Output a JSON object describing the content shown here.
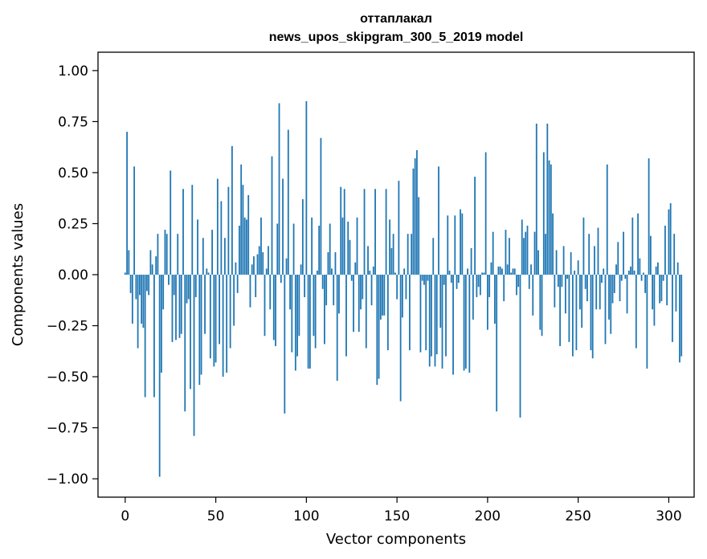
{
  "chart_data": {
    "type": "bar",
    "title_line1": "оттаплакал",
    "title_line2": "news_upos_skipgram_300_5_2019 model",
    "xlabel": "Vector components",
    "ylabel": "Components values",
    "xlim": [
      -15,
      314
    ],
    "ylim": [
      -1.09,
      1.09
    ],
    "xticks": [
      0,
      50,
      100,
      150,
      200,
      250,
      300
    ],
    "yticks": [
      1.0,
      0.75,
      0.5,
      0.25,
      0.0,
      -0.25,
      -0.5,
      -0.75,
      -1.0
    ],
    "ytick_labels": [
      "1.00",
      "0.75",
      "0.50",
      "0.25",
      "0.00",
      "−0.25",
      "−0.50",
      "−0.75",
      "−1.00"
    ],
    "bar_color": "#1f77b4",
    "values": [
      0.01,
      0.7,
      0.12,
      -0.09,
      -0.24,
      0.53,
      -0.12,
      -0.36,
      -0.1,
      -0.24,
      -0.26,
      -0.6,
      -0.08,
      -0.1,
      0.12,
      0.05,
      -0.6,
      0.09,
      0.2,
      -0.99,
      -0.48,
      -0.17,
      0.22,
      0.2,
      -0.05,
      0.51,
      -0.33,
      -0.1,
      -0.32,
      0.2,
      -0.31,
      -0.29,
      0.42,
      -0.67,
      -0.14,
      -0.12,
      -0.56,
      0.44,
      -0.79,
      -0.11,
      0.27,
      -0.54,
      -0.49,
      0.18,
      -0.29,
      0.03,
      0.01,
      -0.41,
      0.22,
      -0.45,
      -0.43,
      0.47,
      -0.34,
      0.36,
      -0.5,
      0.18,
      -0.48,
      0.43,
      -0.36,
      0.63,
      -0.25,
      0.06,
      -0.09,
      0.24,
      0.54,
      0.44,
      0.28,
      0.27,
      0.39,
      -0.16,
      0.05,
      0.09,
      -0.11,
      0.1,
      0.14,
      0.28,
      0.11,
      -0.3,
      0.03,
      0.14,
      -0.17,
      0.58,
      -0.32,
      -0.35,
      0.25,
      0.84,
      -0.04,
      0.47,
      -0.68,
      0.08,
      0.71,
      -0.17,
      -0.38,
      0.25,
      -0.47,
      -0.4,
      -0.3,
      0.05,
      0.37,
      -0.11,
      0.85,
      -0.46,
      -0.46,
      0.28,
      -0.3,
      -0.36,
      0.02,
      0.24,
      0.67,
      -0.07,
      -0.34,
      -0.15,
      0.11,
      0.25,
      0.03,
      -0.15,
      0.11,
      -0.52,
      -0.19,
      0.43,
      0.28,
      0.42,
      -0.4,
      0.26,
      0.17,
      -0.03,
      -0.28,
      0.06,
      0.28,
      -0.28,
      -0.17,
      -0.12,
      0.42,
      -0.36,
      0.14,
      0.02,
      -0.15,
      0.04,
      0.42,
      -0.54,
      -0.51,
      -0.22,
      -0.2,
      -0.2,
      0.42,
      -0.37,
      0.27,
      0.13,
      0.2,
      0.01,
      -0.12,
      0.46,
      -0.62,
      -0.21,
      0.03,
      -0.12,
      0.2,
      -0.37,
      0.2,
      0.52,
      0.57,
      0.61,
      0.38,
      -0.38,
      -0.03,
      -0.05,
      -0.37,
      -0.03,
      -0.45,
      -0.4,
      0.18,
      -0.45,
      -0.39,
      0.53,
      -0.26,
      -0.46,
      -0.05,
      -0.4,
      0.29,
      0.02,
      -0.04,
      -0.49,
      0.29,
      -0.07,
      -0.04,
      0.32,
      0.3,
      -0.47,
      -0.46,
      0.03,
      -0.48,
      0.13,
      -0.22,
      0.48,
      -0.11,
      -0.06,
      -0.1,
      0.01,
      0.01,
      0.6,
      -0.27,
      -0.11,
      0.06,
      0.21,
      -0.24,
      -0.67,
      0.04,
      0.04,
      0.03,
      -0.13,
      0.22,
      0.05,
      0.18,
      0.01,
      0.03,
      0.03,
      -0.1,
      -0.06,
      -0.7,
      0.27,
      0.18,
      0.21,
      0.24,
      -0.07,
      0.05,
      -0.2,
      0.21,
      0.74,
      0.12,
      -0.27,
      -0.3,
      0.6,
      0.2,
      0.74,
      0.56,
      0.54,
      0.3,
      -0.16,
      0.12,
      -0.06,
      -0.35,
      -0.06,
      0.14,
      -0.19,
      -0.02,
      -0.33,
      0.11,
      -0.4,
      0.02,
      -0.37,
      0.07,
      -0.17,
      -0.26,
      0.28,
      -0.07,
      -0.13,
      0.2,
      -0.37,
      -0.41,
      0.14,
      -0.17,
      0.23,
      -0.17,
      -0.04,
      0.03,
      -0.34,
      0.54,
      -0.22,
      -0.29,
      -0.14,
      -0.09,
      0.05,
      0.16,
      -0.13,
      -0.03,
      0.21,
      -0.02,
      -0.19,
      0.02,
      0.04,
      0.28,
      0.02,
      -0.36,
      0.3,
      0.08,
      -0.03,
      0.01,
      -0.09,
      -0.46,
      0.57,
      0.19,
      -0.17,
      -0.25,
      0.04,
      0.06,
      -0.14,
      -0.13,
      -0.03,
      0.24,
      -0.15,
      0.32,
      0.35,
      -0.33,
      0.2,
      -0.18,
      0.06,
      -0.43,
      -0.4
    ]
  }
}
